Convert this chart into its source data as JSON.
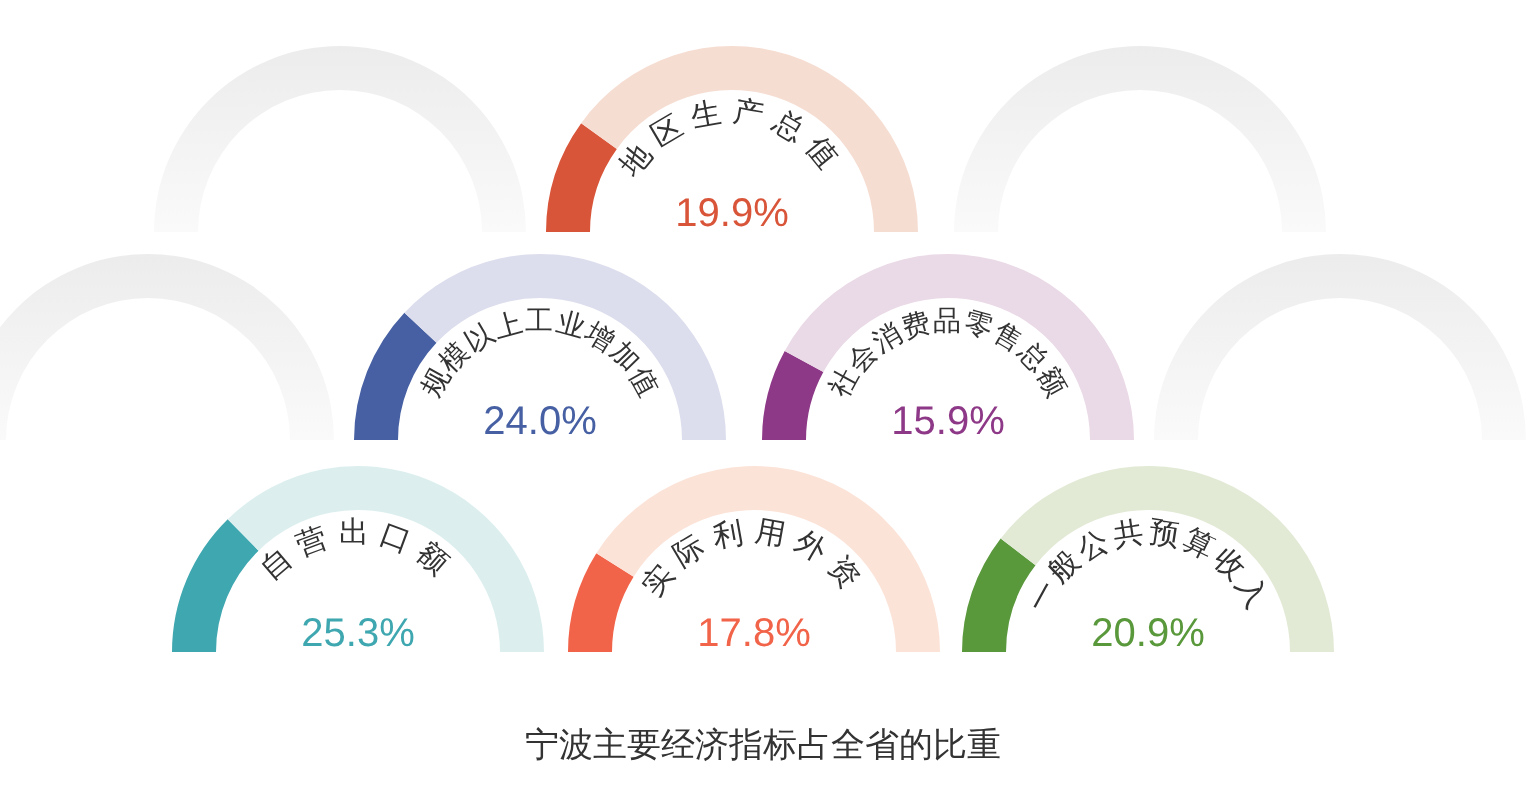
{
  "chart_data": [
    {
      "type": "donut",
      "title": "地区生产总值",
      "subtitle": "19.9%",
      "categories": [
        null,
        null
      ],
      "values": [
        19.9,
        80.1
      ],
      "colors": [
        "#d9553a",
        "#f6ddd2"
      ]
    },
    {
      "type": "donut",
      "title": "规模以上工业增加值",
      "subtitle": "24.0%",
      "categories": [
        null,
        null
      ],
      "values": [
        24.0,
        76.0
      ],
      "colors": [
        "#4660a3",
        "#dcdeed"
      ]
    },
    {
      "type": "donut",
      "title": "社会消费品零售总额",
      "subtitle": "15.9%",
      "categories": [
        null,
        null
      ],
      "values": [
        15.9,
        84.1
      ],
      "colors": [
        "#8e3987",
        "#ead9e6"
      ]
    },
    {
      "type": "donut",
      "title": "自营出口额",
      "subtitle": "25.3%",
      "categories": [
        null,
        null
      ],
      "values": [
        25.3,
        74.7
      ],
      "colors": [
        "#3fa7b0",
        "#dcefee"
      ]
    },
    {
      "type": "donut",
      "title": "实际利用外资",
      "subtitle": "17.8%",
      "categories": [
        null,
        null
      ],
      "values": [
        17.8,
        82.2
      ],
      "colors": [
        "#f2644a",
        "#fce3d8"
      ]
    },
    {
      "type": "donut",
      "title": "一般公共预算收入",
      "subtitle": "20.9%",
      "categories": [
        null,
        null
      ],
      "values": [
        20.9,
        79.1
      ],
      "colors": [
        "#5a983c",
        "#e2ead6"
      ],
      "annotations": [
        "宁波主要经济指标占全省的比重"
      ]
    }
  ]
}
